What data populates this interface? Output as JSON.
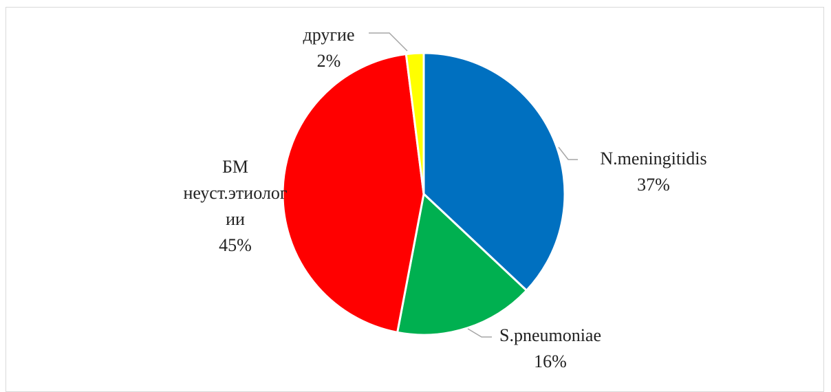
{
  "chart_data": {
    "type": "pie",
    "categories": [
      "N.meningitidis",
      "S.pneumoniae",
      "БМ неуст.этиологии",
      "другие"
    ],
    "values": [
      37,
      16,
      45,
      2
    ],
    "value_labels": [
      "37%",
      "16%",
      "45%",
      "2%"
    ],
    "colors": [
      "#0070c0",
      "#00b050",
      "#ff0000",
      "#ffff00"
    ]
  }
}
